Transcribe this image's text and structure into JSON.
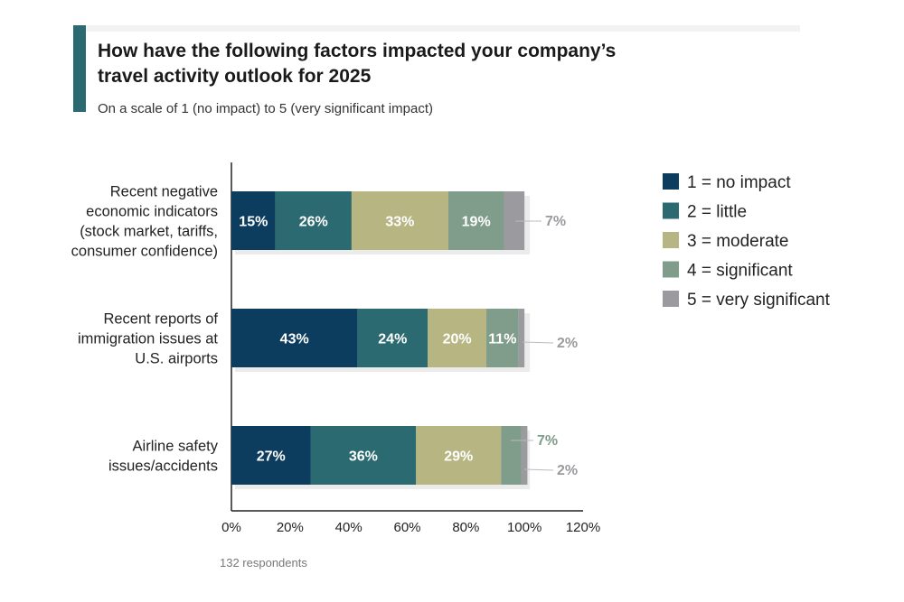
{
  "chart_data": {
    "type": "bar",
    "orientation": "horizontal",
    "stacked": true,
    "title": "How have the following factors impacted your company’s travel activity outlook for 2025",
    "title_lines": [
      "How have the following factors impacted your company’s",
      "travel activity outlook for 2025"
    ],
    "subtitle": "On a scale of 1 (no impact) to 5 (very significant impact)",
    "footnote": "132 respondents",
    "categories": [
      [
        "Recent negative",
        "economic indicators",
        "(stock market, tariffs,",
        "consumer confidence)"
      ],
      [
        "Recent reports of",
        "immigration issues at",
        "U.S. airports"
      ],
      [
        "Airline safety",
        "issues/accidents"
      ]
    ],
    "series": [
      {
        "name": "1 = no impact",
        "color": "#0c3d5f",
        "values": [
          15,
          43,
          27
        ]
      },
      {
        "name": "2 = little",
        "color": "#2a6a70",
        "values": [
          26,
          24,
          36
        ]
      },
      {
        "name": "3 = moderate",
        "color": "#b7b581",
        "values": [
          33,
          20,
          29
        ]
      },
      {
        "name": "4 = significant",
        "color": "#7f9d8a",
        "values": [
          19,
          11,
          7
        ]
      },
      {
        "name": "5 = very significant",
        "color": "#9b9b9f",
        "values": [
          7,
          2,
          2
        ]
      }
    ],
    "xlim": [
      0,
      120
    ],
    "xticks": [
      "0%",
      "20%",
      "40%",
      "60%",
      "80%",
      "100%",
      "120%"
    ],
    "legend_position": "right",
    "grid": false,
    "accent_color": "#2a6a70"
  }
}
